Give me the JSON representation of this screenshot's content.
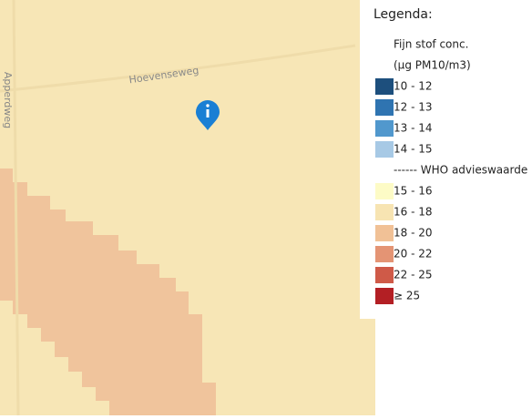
{
  "map": {
    "streets": [
      "Hoevenseweg",
      "Apperdweg"
    ]
  },
  "legend": {
    "title": "Legenda:",
    "subtitle": "Fijn stof conc.",
    "unit": "(µg PM10/m3)",
    "items_low": [
      {
        "label": "10 - 12",
        "color": "#1d4f7d"
      },
      {
        "label": "12 - 13",
        "color": "#2f74b1"
      },
      {
        "label": "13 - 14",
        "color": "#5198cd"
      },
      {
        "label": "14 - 15",
        "color": "#a7c9e5"
      }
    ],
    "who_label": "------ WHO advieswaarde",
    "items_high": [
      {
        "label": "15 - 16",
        "color": "#fdfbc6"
      },
      {
        "label": "16 - 18",
        "color": "#f7e4b2"
      },
      {
        "label": "18 - 20",
        "color": "#f1c196"
      },
      {
        "label": "20 - 22",
        "color": "#e49474"
      },
      {
        "label": "22 - 25",
        "color": "#cf5a48"
      },
      {
        "label": "≥ 25",
        "color": "#b31f24"
      }
    ]
  }
}
